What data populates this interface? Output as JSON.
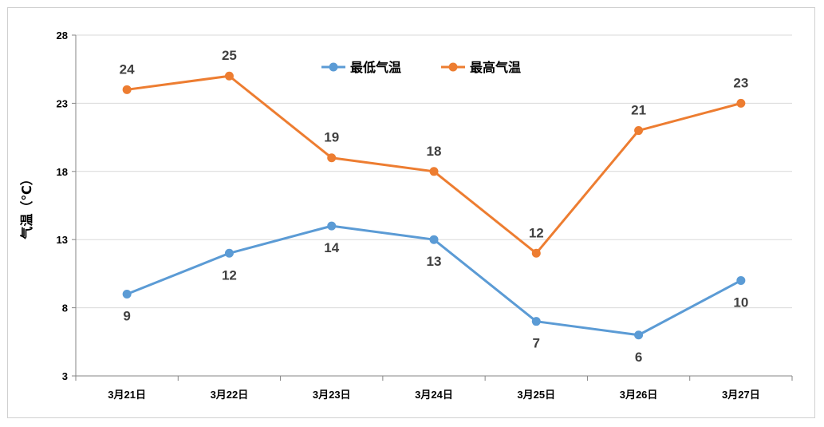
{
  "chart_data": {
    "type": "line",
    "categories": [
      "3月21日",
      "3月22日",
      "3月23日",
      "3月24日",
      "3月25日",
      "3月26日",
      "3月27日"
    ],
    "series": [
      {
        "name": "最低气温",
        "color": "#5b9bd5",
        "values": [
          9,
          12,
          14,
          13,
          7,
          6,
          10
        ],
        "label_position": "below"
      },
      {
        "name": "最高气温",
        "color": "#ed7d31",
        "values": [
          24,
          25,
          19,
          18,
          12,
          21,
          23
        ],
        "label_position": "above"
      }
    ],
    "ylabel": "气温（℃）",
    "ylim": [
      3,
      28
    ],
    "yticks": [
      3,
      8,
      13,
      18,
      23,
      28
    ],
    "grid": true,
    "legend_position": "top-center"
  }
}
